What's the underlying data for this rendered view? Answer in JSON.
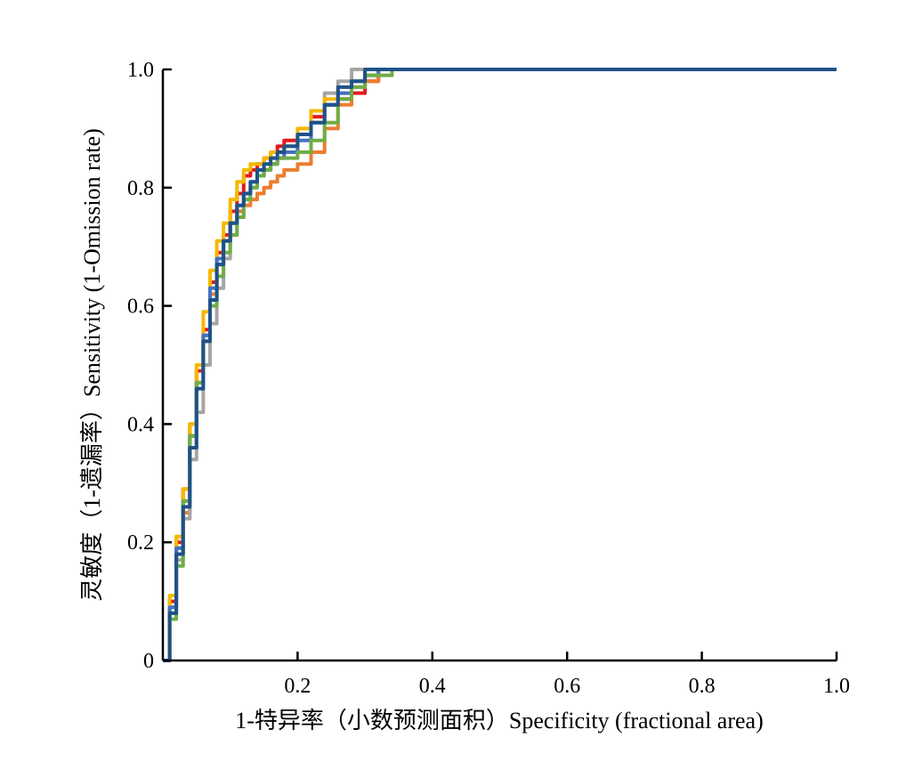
{
  "chart_data": {
    "type": "line",
    "xlabel": "1-特异率（小数预测面积）Specificity (fractional area)",
    "ylabel": "灵敏度（1-遗漏率）Sensitivity (1-Omission rate)",
    "xlim": [
      0,
      1
    ],
    "ylim": [
      0,
      1
    ],
    "x_ticks": [
      {
        "value": 0.2,
        "label": "0.2"
      },
      {
        "value": 0.4,
        "label": "0.4"
      },
      {
        "value": 0.6,
        "label": "0.6"
      },
      {
        "value": 0.8,
        "label": "0.8"
      },
      {
        "value": 1.0,
        "label": "1.0"
      }
    ],
    "y_ticks": [
      {
        "value": 0,
        "label": "0"
      },
      {
        "value": 0.2,
        "label": "0.2"
      },
      {
        "value": 0.4,
        "label": "0.4"
      },
      {
        "value": 0.6,
        "label": "0.6"
      },
      {
        "value": 0.8,
        "label": "0.8"
      },
      {
        "value": 1.0,
        "label": "1.0"
      }
    ],
    "grid": false,
    "legend": "none",
    "series": [
      {
        "color": "#e31a1c",
        "x": [
          0,
          0.01,
          0.02,
          0.03,
          0.04,
          0.05,
          0.06,
          0.07,
          0.08,
          0.09,
          0.1,
          0.11,
          0.12,
          0.13,
          0.14,
          0.15,
          0.16,
          0.17,
          0.18,
          0.2,
          0.22,
          0.24,
          0.26,
          0.28,
          0.3,
          0.32,
          0.4,
          1.0
        ],
        "y": [
          0,
          0.1,
          0.2,
          0.29,
          0.4,
          0.49,
          0.56,
          0.64,
          0.69,
          0.72,
          0.76,
          0.79,
          0.82,
          0.83,
          0.84,
          0.85,
          0.86,
          0.87,
          0.88,
          0.89,
          0.92,
          0.94,
          0.95,
          0.96,
          0.98,
          1.0,
          1.0,
          1.0
        ]
      },
      {
        "color": "#ed7d31",
        "x": [
          0,
          0.01,
          0.02,
          0.03,
          0.04,
          0.05,
          0.06,
          0.07,
          0.08,
          0.09,
          0.1,
          0.11,
          0.12,
          0.13,
          0.14,
          0.15,
          0.16,
          0.17,
          0.18,
          0.2,
          0.22,
          0.24,
          0.26,
          0.28,
          0.3,
          0.32,
          0.4,
          1.0
        ],
        "y": [
          0,
          0.09,
          0.19,
          0.25,
          0.36,
          0.47,
          0.55,
          0.62,
          0.67,
          0.71,
          0.74,
          0.76,
          0.77,
          0.78,
          0.79,
          0.8,
          0.81,
          0.82,
          0.83,
          0.84,
          0.86,
          0.9,
          0.94,
          0.97,
          0.98,
          1.0,
          1.0,
          1.0
        ]
      },
      {
        "color": "#a5a5a5",
        "x": [
          0,
          0.01,
          0.02,
          0.03,
          0.04,
          0.05,
          0.06,
          0.07,
          0.08,
          0.09,
          0.1,
          0.11,
          0.12,
          0.13,
          0.14,
          0.15,
          0.16,
          0.17,
          0.18,
          0.2,
          0.22,
          0.24,
          0.26,
          0.28,
          0.3,
          0.32,
          0.4,
          1.0
        ],
        "y": [
          0,
          0.08,
          0.17,
          0.24,
          0.34,
          0.42,
          0.5,
          0.57,
          0.63,
          0.68,
          0.72,
          0.75,
          0.78,
          0.8,
          0.82,
          0.83,
          0.84,
          0.85,
          0.86,
          0.89,
          0.93,
          0.96,
          0.98,
          1.0,
          1.0,
          1.0,
          1.0,
          1.0
        ]
      },
      {
        "color": "#f5b800",
        "x": [
          0,
          0.01,
          0.02,
          0.03,
          0.04,
          0.05,
          0.06,
          0.07,
          0.08,
          0.09,
          0.1,
          0.11,
          0.12,
          0.13,
          0.14,
          0.15,
          0.16,
          0.17,
          0.18,
          0.2,
          0.22,
          0.24,
          0.26,
          0.28,
          0.3,
          0.32,
          0.4,
          1.0
        ],
        "y": [
          0,
          0.11,
          0.21,
          0.29,
          0.4,
          0.5,
          0.59,
          0.66,
          0.71,
          0.74,
          0.78,
          0.81,
          0.83,
          0.84,
          0.84,
          0.85,
          0.86,
          0.86,
          0.87,
          0.9,
          0.93,
          0.95,
          0.96,
          0.98,
          1.0,
          1.0,
          1.0,
          1.0
        ]
      },
      {
        "color": "#4472c4",
        "x": [
          0,
          0.01,
          0.02,
          0.03,
          0.04,
          0.05,
          0.06,
          0.07,
          0.08,
          0.09,
          0.1,
          0.11,
          0.12,
          0.13,
          0.14,
          0.15,
          0.16,
          0.17,
          0.18,
          0.2,
          0.22,
          0.24,
          0.26,
          0.28,
          0.3,
          0.32,
          0.4,
          1.0
        ],
        "y": [
          0,
          0.09,
          0.19,
          0.27,
          0.38,
          0.47,
          0.55,
          0.63,
          0.68,
          0.71,
          0.74,
          0.77,
          0.79,
          0.81,
          0.82,
          0.83,
          0.84,
          0.85,
          0.86,
          0.88,
          0.91,
          0.94,
          0.96,
          0.98,
          0.99,
          1.0,
          1.0,
          1.0
        ]
      },
      {
        "color": "#70ad47",
        "x": [
          0,
          0.01,
          0.02,
          0.03,
          0.04,
          0.05,
          0.06,
          0.07,
          0.08,
          0.09,
          0.1,
          0.11,
          0.12,
          0.13,
          0.14,
          0.15,
          0.16,
          0.17,
          0.18,
          0.2,
          0.22,
          0.24,
          0.26,
          0.28,
          0.3,
          0.32,
          0.34,
          0.4,
          1.0
        ],
        "y": [
          0,
          0.07,
          0.16,
          0.27,
          0.38,
          0.47,
          0.54,
          0.6,
          0.65,
          0.69,
          0.72,
          0.75,
          0.78,
          0.8,
          0.82,
          0.83,
          0.84,
          0.85,
          0.85,
          0.86,
          0.88,
          0.91,
          0.95,
          0.97,
          0.99,
          0.99,
          1.0,
          1.0,
          1.0
        ]
      },
      {
        "color": "#1f5288",
        "x": [
          0,
          0.01,
          0.02,
          0.03,
          0.04,
          0.05,
          0.06,
          0.07,
          0.08,
          0.09,
          0.1,
          0.11,
          0.12,
          0.13,
          0.14,
          0.15,
          0.16,
          0.17,
          0.18,
          0.2,
          0.22,
          0.24,
          0.26,
          0.28,
          0.3,
          0.32,
          0.4,
          1.0
        ],
        "y": [
          0,
          0.08,
          0.18,
          0.26,
          0.36,
          0.46,
          0.54,
          0.61,
          0.67,
          0.71,
          0.74,
          0.77,
          0.79,
          0.81,
          0.83,
          0.84,
          0.85,
          0.86,
          0.87,
          0.89,
          0.91,
          0.94,
          0.97,
          0.98,
          1.0,
          1.0,
          1.0,
          1.0
        ]
      }
    ]
  }
}
